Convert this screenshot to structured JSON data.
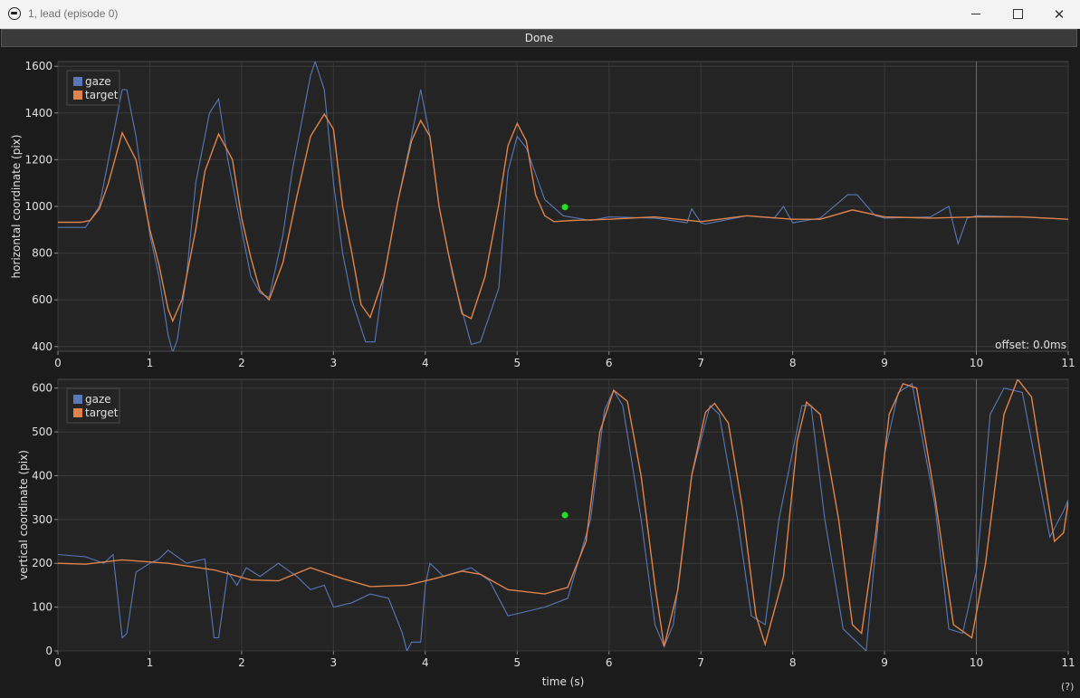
{
  "window": {
    "title": "1, lead (episode 0)",
    "icon": "app-logo-icon",
    "min_icon": "minimize-icon",
    "max_icon": "maximize-icon",
    "close_icon": "close-icon",
    "close_glyph": "✕"
  },
  "toolbar": {
    "done_label": "Done"
  },
  "help_label": "(?)",
  "colors": {
    "background": "#1b1b1b",
    "plot_bg": "#242424",
    "grid": "#3a3a3a",
    "gaze": "#5878b8",
    "target": "#e0834a",
    "marker": "#22e022",
    "text": "#e0e0e0"
  },
  "chart_data": [
    {
      "type": "line",
      "ylabel": "horizontal coordinate (pix)",
      "xlabel": "",
      "xlim": [
        0,
        11
      ],
      "ylim": [
        380,
        1620
      ],
      "xticks": [
        "0",
        "1",
        "2",
        "3",
        "4",
        "5",
        "6",
        "7",
        "8",
        "9",
        "10",
        "11"
      ],
      "yticks": [
        "400",
        "600",
        "800",
        "1000",
        "1200",
        "1400",
        "1600"
      ],
      "annotation": "offset: 0.0ms",
      "legend": [
        "gaze",
        "target"
      ],
      "legend_position": "top-left",
      "marker": {
        "x": 5.52,
        "y": 997
      },
      "cursor_x": 10.0,
      "series": [
        {
          "name": "target",
          "x": [
            0,
            0.25,
            0.35,
            0.45,
            0.55,
            0.7,
            0.85,
            1.0,
            1.1,
            1.2,
            1.25,
            1.35,
            1.5,
            1.6,
            1.75,
            1.9,
            2.0,
            2.1,
            2.2,
            2.3,
            2.45,
            2.6,
            2.75,
            2.9,
            3.0,
            3.1,
            3.2,
            3.3,
            3.4,
            3.55,
            3.7,
            3.85,
            3.95,
            4.05,
            4.15,
            4.25,
            4.4,
            4.5,
            4.65,
            4.8,
            4.9,
            5.0,
            5.1,
            5.2,
            5.3,
            5.4,
            5.6,
            6.0,
            6.5,
            7.0,
            7.5,
            8.0,
            8.3,
            8.65,
            9.0,
            9.5,
            10.0,
            10.5,
            11.0
          ],
          "y": [
            932,
            932,
            940,
            990,
            1100,
            1315,
            1200,
            900,
            750,
            560,
            510,
            600,
            900,
            1150,
            1310,
            1200,
            950,
            780,
            640,
            600,
            760,
            1040,
            1300,
            1395,
            1330,
            1000,
            800,
            580,
            525,
            700,
            1020,
            1280,
            1368,
            1300,
            1000,
            800,
            540,
            520,
            700,
            1010,
            1260,
            1355,
            1280,
            1050,
            960,
            935,
            940,
            945,
            955,
            935,
            960,
            945,
            945,
            985,
            955,
            950,
            955,
            955,
            945
          ]
        },
        {
          "name": "gaze",
          "x": [
            0,
            0.3,
            0.45,
            0.6,
            0.7,
            0.75,
            0.85,
            1.0,
            1.1,
            1.2,
            1.25,
            1.3,
            1.4,
            1.5,
            1.65,
            1.75,
            1.85,
            2.0,
            2.1,
            2.2,
            2.3,
            2.45,
            2.55,
            2.75,
            2.8,
            2.9,
            3.0,
            3.1,
            3.2,
            3.35,
            3.45,
            3.55,
            3.7,
            3.85,
            3.95,
            4.05,
            4.15,
            4.3,
            4.5,
            4.6,
            4.8,
            4.9,
            5.0,
            5.1,
            5.3,
            5.5,
            5.8,
            6.0,
            6.5,
            6.85,
            6.9,
            7.0,
            7.05,
            7.5,
            7.8,
            7.9,
            8.0,
            8.3,
            8.6,
            8.7,
            8.9,
            9.0,
            9.5,
            9.7,
            9.8,
            9.9,
            10.0,
            10.5,
            11.0
          ],
          "y": [
            910,
            910,
            1000,
            1300,
            1500,
            1500,
            1300,
            880,
            700,
            450,
            375,
            430,
            700,
            1100,
            1400,
            1460,
            1200,
            900,
            700,
            630,
            610,
            880,
            1150,
            1560,
            1620,
            1500,
            1100,
            800,
            600,
            420,
            420,
            700,
            1020,
            1300,
            1500,
            1300,
            1000,
            700,
            410,
            420,
            650,
            1150,
            1300,
            1250,
            1030,
            960,
            940,
            955,
            950,
            930,
            990,
            930,
            925,
            960,
            950,
            1000,
            930,
            950,
            1050,
            1050,
            960,
            950,
            955,
            1000,
            840,
            950,
            960,
            955,
            945
          ]
        }
      ]
    },
    {
      "type": "line",
      "ylabel": "vertical coordinate (pix)",
      "xlabel": "time (s)",
      "xlim": [
        0,
        11
      ],
      "ylim": [
        0,
        620
      ],
      "xticks": [
        "0",
        "1",
        "2",
        "3",
        "4",
        "5",
        "6",
        "7",
        "8",
        "9",
        "10",
        "11"
      ],
      "yticks": [
        "0",
        "100",
        "200",
        "300",
        "400",
        "500",
        "600"
      ],
      "legend": [
        "gaze",
        "target"
      ],
      "legend_position": "top-left",
      "marker": {
        "x": 5.52,
        "y": 310
      },
      "cursor_x": 10.0,
      "series": [
        {
          "name": "target",
          "x": [
            0,
            0.3,
            0.7,
            1.2,
            1.7,
            2.1,
            2.4,
            2.75,
            3.1,
            3.4,
            3.8,
            4.1,
            4.4,
            4.6,
            4.9,
            5.3,
            5.55,
            5.75,
            5.9,
            6.05,
            6.2,
            6.35,
            6.5,
            6.6,
            6.75,
            6.9,
            7.05,
            7.15,
            7.3,
            7.45,
            7.6,
            7.7,
            7.9,
            8.05,
            8.15,
            8.3,
            8.5,
            8.65,
            8.75,
            8.9,
            9.05,
            9.2,
            9.35,
            9.55,
            9.75,
            9.95,
            10.1,
            10.3,
            10.45,
            10.6,
            10.85,
            10.95,
            11.0
          ],
          "y": [
            200,
            198,
            208,
            200,
            185,
            162,
            160,
            190,
            165,
            147,
            150,
            165,
            182,
            175,
            140,
            130,
            145,
            250,
            500,
            595,
            570,
            400,
            150,
            10,
            140,
            400,
            545,
            565,
            520,
            330,
            80,
            15,
            170,
            480,
            568,
            540,
            300,
            60,
            40,
            260,
            540,
            610,
            600,
            350,
            60,
            30,
            200,
            540,
            620,
            580,
            250,
            270,
            340
          ]
        },
        {
          "name": "gaze",
          "x": [
            0,
            0.3,
            0.5,
            0.6,
            0.7,
            0.75,
            0.85,
            1.0,
            1.1,
            1.2,
            1.4,
            1.6,
            1.7,
            1.75,
            1.85,
            1.95,
            2.05,
            2.2,
            2.4,
            2.6,
            2.75,
            2.9,
            3.0,
            3.2,
            3.4,
            3.6,
            3.75,
            3.8,
            3.85,
            3.95,
            4.0,
            4.05,
            4.2,
            4.35,
            4.5,
            4.7,
            4.85,
            4.9,
            5.1,
            5.3,
            5.55,
            5.8,
            5.95,
            6.05,
            6.15,
            6.35,
            6.5,
            6.6,
            6.7,
            6.9,
            7.1,
            7.2,
            7.4,
            7.55,
            7.7,
            7.85,
            8.1,
            8.2,
            8.35,
            8.55,
            8.7,
            8.8,
            9.0,
            9.15,
            9.3,
            9.55,
            9.7,
            9.85,
            10.0,
            10.15,
            10.3,
            10.5,
            10.8,
            10.95,
            11.0
          ],
          "y": [
            220,
            215,
            200,
            220,
            30,
            40,
            180,
            200,
            210,
            230,
            200,
            210,
            30,
            30,
            180,
            150,
            190,
            170,
            200,
            170,
            140,
            150,
            100,
            110,
            130,
            120,
            40,
            0,
            20,
            20,
            150,
            200,
            170,
            180,
            190,
            160,
            100,
            80,
            90,
            100,
            120,
            300,
            550,
            595,
            560,
            300,
            60,
            10,
            60,
            400,
            560,
            540,
            300,
            80,
            60,
            300,
            560,
            560,
            300,
            50,
            20,
            0,
            450,
            590,
            610,
            330,
            50,
            40,
            180,
            540,
            600,
            590,
            260,
            320,
            345
          ]
        }
      ]
    }
  ]
}
